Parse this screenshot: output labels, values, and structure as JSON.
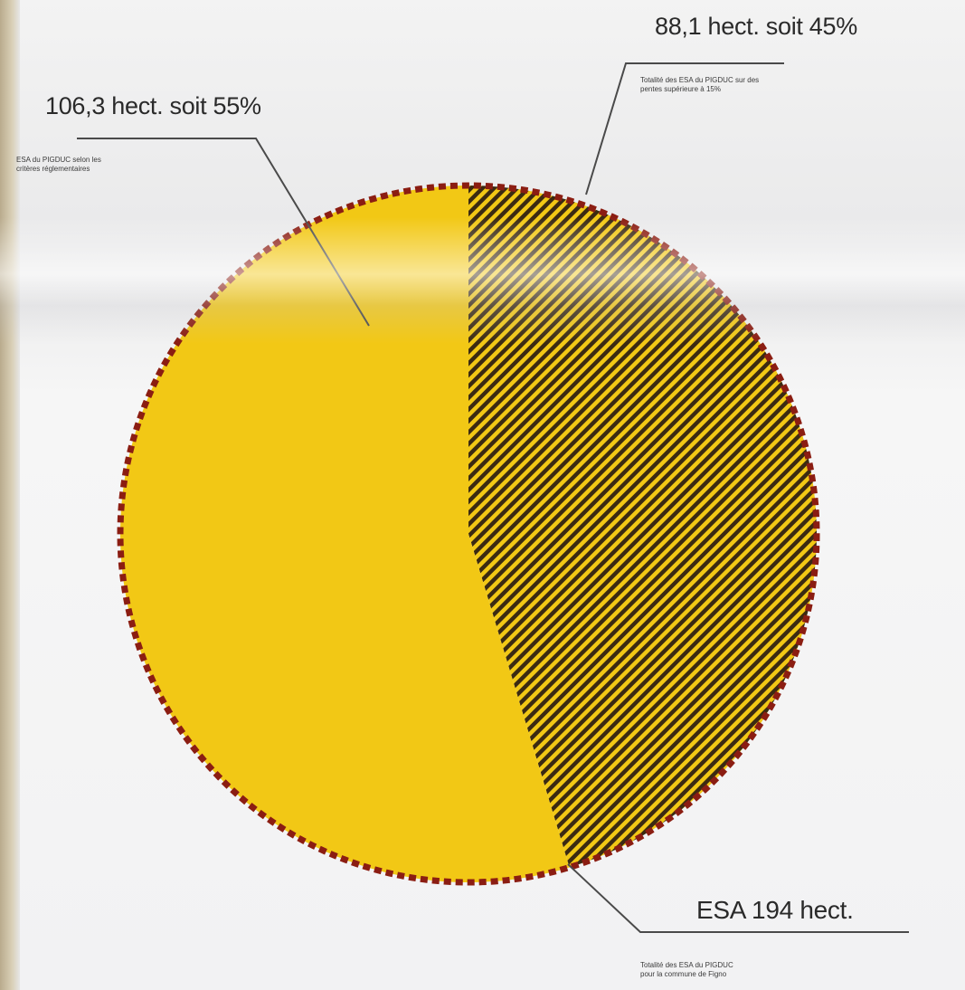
{
  "chart_data": {
    "type": "pie",
    "title": "",
    "slices": [
      {
        "value": 106.3,
        "percent": 55,
        "label": "106,3 hect. soit 55%",
        "description": "ESA du PIGDUC selon les critères réglementaires",
        "color": "#f2c815",
        "pattern": "solid"
      },
      {
        "value": 88.1,
        "percent": 45,
        "label": "88,1 hect. soit 45%",
        "description": "Totalité des ESA du PIGDUC sur des pentes supérieure à 15%",
        "color": "#f2c815",
        "pattern": "hatched",
        "hatch_color": "#3b2a12"
      }
    ],
    "total": {
      "label": "ESA 194 hect.",
      "description": "Totalité des ESA du PIGDUC pour la commune de Figno"
    },
    "outline_color": "#8b1d12",
    "legend": "none"
  }
}
